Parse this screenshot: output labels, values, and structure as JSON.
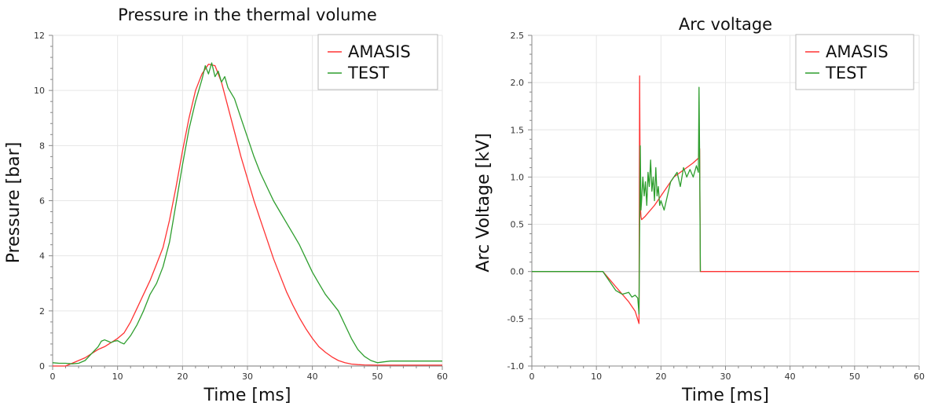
{
  "chart_data": [
    {
      "type": "line",
      "title": "Pressure in the thermal volume",
      "xlabel": "Time [ms]",
      "ylabel": "Pressure [bar]",
      "xlim": [
        0,
        60
      ],
      "ylim": [
        0,
        12
      ],
      "xticks": [
        0,
        10,
        20,
        30,
        40,
        50,
        60
      ],
      "yticks": [
        0,
        2,
        4,
        6,
        8,
        10,
        12
      ],
      "grid": true,
      "legend": "top-right",
      "series": [
        {
          "name": "AMASIS",
          "color": "#ff3333",
          "x": [
            0,
            2,
            3,
            5,
            7,
            8,
            9,
            10,
            11,
            12,
            13,
            14,
            15,
            16,
            17,
            18,
            19,
            20,
            21,
            22,
            23,
            24,
            25,
            26,
            27,
            28,
            29,
            30,
            31,
            32,
            33,
            34,
            35,
            36,
            37,
            38,
            39,
            40,
            41,
            42,
            43,
            44,
            45,
            46,
            47,
            48,
            50,
            55,
            60
          ],
          "y": [
            0,
            0,
            0.1,
            0.3,
            0.6,
            0.7,
            0.85,
            1.0,
            1.2,
            1.6,
            2.1,
            2.6,
            3.1,
            3.7,
            4.3,
            5.3,
            6.5,
            7.8,
            9.0,
            10.0,
            10.6,
            10.95,
            10.9,
            10.3,
            9.4,
            8.5,
            7.6,
            6.8,
            6.0,
            5.3,
            4.6,
            3.9,
            3.3,
            2.7,
            2.2,
            1.75,
            1.35,
            1.0,
            0.7,
            0.5,
            0.33,
            0.2,
            0.12,
            0.07,
            0.05,
            0.04,
            0.03,
            0.03,
            0.03
          ]
        },
        {
          "name": "TEST",
          "color": "#2e9e2e",
          "x": [
            0,
            1,
            2,
            3,
            4,
            5,
            6,
            7,
            7.5,
            8,
            8.5,
            9,
            9.5,
            10,
            10.5,
            11,
            12,
            13,
            14,
            15,
            16,
            17,
            18,
            19,
            20,
            21,
            22,
            23,
            23.5,
            24,
            24.5,
            25,
            25.5,
            26,
            26.5,
            27,
            28,
            29,
            30,
            31,
            32,
            33,
            34,
            35,
            36,
            37,
            38,
            39,
            40,
            41,
            42,
            43,
            44,
            45,
            46,
            47,
            48,
            49,
            50,
            51,
            52,
            55,
            60
          ],
          "y": [
            0.12,
            0.1,
            0.1,
            0.08,
            0.1,
            0.2,
            0.45,
            0.7,
            0.9,
            0.95,
            0.9,
            0.85,
            0.9,
            0.92,
            0.85,
            0.8,
            1.1,
            1.5,
            2.0,
            2.6,
            3.0,
            3.6,
            4.5,
            5.9,
            7.3,
            8.6,
            9.6,
            10.4,
            10.9,
            10.6,
            11.0,
            10.5,
            10.7,
            10.3,
            10.5,
            10.1,
            9.7,
            9.0,
            8.3,
            7.6,
            7.0,
            6.5,
            6.0,
            5.6,
            5.2,
            4.8,
            4.4,
            3.9,
            3.4,
            3.0,
            2.6,
            2.3,
            2.0,
            1.5,
            1.0,
            0.6,
            0.35,
            0.2,
            0.12,
            0.15,
            0.18,
            0.18,
            0.18
          ]
        }
      ]
    },
    {
      "type": "line",
      "title": "Arc voltage",
      "xlabel": "Time [ms]",
      "ylabel": "Arc Voltage [kV]",
      "xlim": [
        0,
        60
      ],
      "ylim": [
        -1.0,
        2.5
      ],
      "xticks": [
        0,
        10,
        20,
        30,
        40,
        50,
        60
      ],
      "yticks": [
        -1.0,
        -0.5,
        0.0,
        0.5,
        1.0,
        1.5,
        2.0,
        2.5
      ],
      "grid": true,
      "legend": "top-right",
      "series": [
        {
          "name": "AMASIS",
          "color": "#ff3333",
          "x": [
            0,
            10,
            11,
            12,
            13,
            14,
            15,
            16,
            16.6,
            16.7,
            16.8,
            16.9,
            17.0,
            17.5,
            18,
            19,
            20,
            21,
            22,
            23,
            24,
            25,
            25.8,
            26.0,
            26.1,
            26.2,
            30,
            40,
            50,
            60
          ],
          "y": [
            0,
            0,
            0.0,
            -0.08,
            -0.16,
            -0.24,
            -0.32,
            -0.42,
            -0.55,
            2.07,
            0.7,
            0.58,
            0.55,
            0.58,
            0.62,
            0.7,
            0.8,
            0.9,
            1.0,
            1.05,
            1.1,
            1.15,
            1.2,
            1.3,
            0.0,
            0.0,
            0.0,
            0.0,
            0.0,
            0.0
          ]
        },
        {
          "name": "TEST",
          "color": "#2e9e2e",
          "x": [
            0,
            10,
            11,
            12,
            13,
            14,
            15,
            15.5,
            16,
            16.4,
            16.6,
            16.8,
            16.9,
            17.0,
            17.2,
            17.4,
            17.6,
            17.8,
            18.0,
            18.2,
            18.4,
            18.6,
            18.8,
            19.0,
            19.2,
            19.4,
            19.6,
            19.8,
            20.0,
            20.5,
            21,
            21.5,
            22,
            22.5,
            23,
            23.5,
            24,
            24.5,
            25,
            25.5,
            25.8,
            25.9,
            26.0,
            26.1
          ],
          "y": [
            0,
            0,
            0.0,
            -0.1,
            -0.2,
            -0.24,
            -0.22,
            -0.27,
            -0.25,
            -0.28,
            -0.45,
            1.33,
            0.65,
            0.75,
            1.0,
            0.8,
            0.95,
            0.7,
            1.05,
            0.9,
            1.18,
            0.85,
            1.0,
            0.75,
            1.1,
            0.8,
            0.9,
            0.7,
            0.75,
            0.65,
            0.8,
            0.95,
            1.0,
            1.05,
            0.9,
            1.1,
            1.0,
            1.08,
            1.0,
            1.12,
            1.05,
            1.95,
            1.2,
            0.0
          ]
        }
      ]
    }
  ]
}
